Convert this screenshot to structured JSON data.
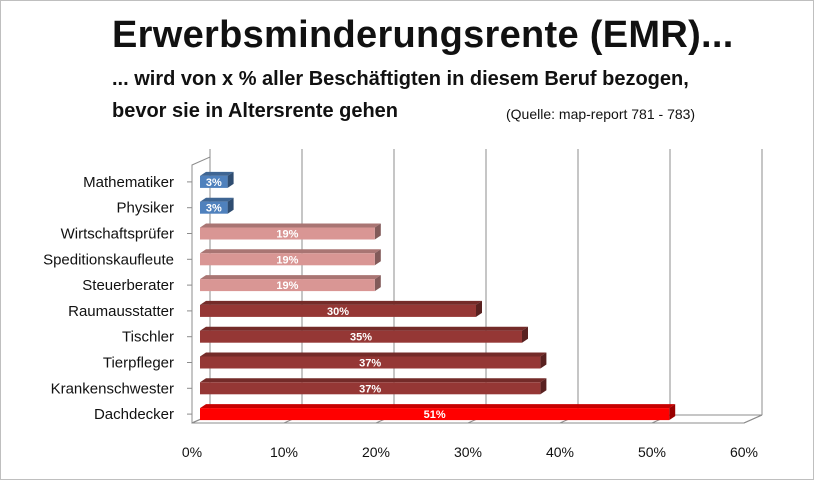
{
  "header": {
    "title": "Erwerbsminderungsrente (EMR)...",
    "subtitle_line1": "... wird von x % aller Beschäftigten in diesem Beruf bezogen,",
    "subtitle_line2": "bevor sie in Altersrente gehen",
    "source": "(Quelle: map-report 781 - 783)"
  },
  "chart_data": {
    "type": "bar",
    "orientation": "horizontal",
    "title": "Erwerbsminderungsrente (EMR)...",
    "xlabel": "",
    "ylabel": "",
    "xlim": [
      0,
      60
    ],
    "grid": true,
    "categories": [
      "Mathematiker",
      "Physiker",
      "Wirtschaftsprüfer",
      "Speditionskaufleute",
      "Steuerberater",
      "Raumausstatter",
      "Tischler",
      "Tierpfleger",
      "Krankenschwester",
      "Dachdecker"
    ],
    "values": [
      3,
      3,
      19,
      19,
      19,
      30,
      35,
      37,
      37,
      51
    ],
    "data_labels": [
      "3%",
      "3%",
      "19%",
      "19%",
      "19%",
      "30%",
      "35%",
      "37%",
      "37%",
      "51%"
    ],
    "x_ticks": [
      "0%",
      "10%",
      "20%",
      "30%",
      "40%",
      "50%",
      "60%"
    ],
    "bar_colors": [
      "#4f81bd",
      "#4f81bd",
      "#d99694",
      "#d99694",
      "#d99694",
      "#953735",
      "#953735",
      "#953735",
      "#953735",
      "#ff0000"
    ]
  }
}
